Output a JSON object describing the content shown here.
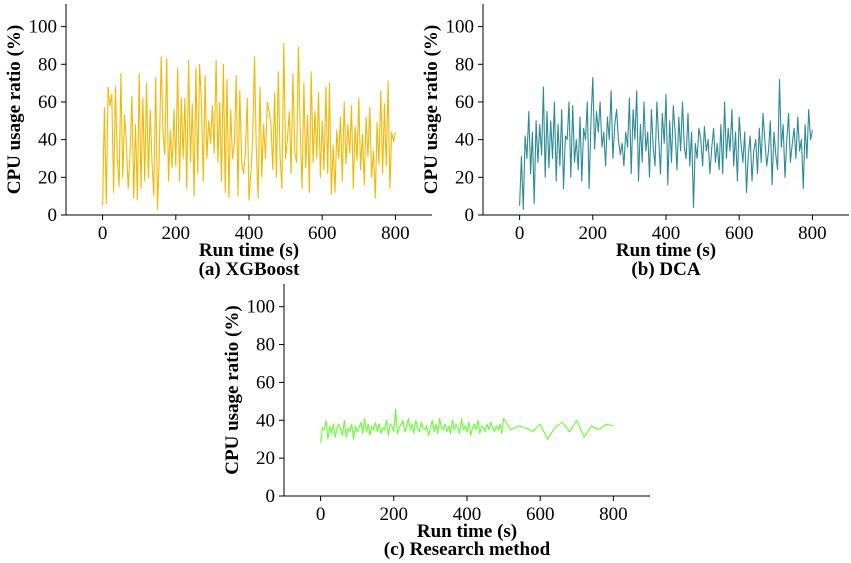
{
  "chart_data": [
    {
      "type": "line",
      "caption": "(a) XGBoost",
      "xlabel": "Run time (s)",
      "ylabel": "CPU usage ratio (%)",
      "xlim": [
        -100,
        900
      ],
      "ylim": [
        0,
        112
      ],
      "xticks": [
        0,
        200,
        400,
        600,
        800
      ],
      "yticks": [
        0,
        20,
        40,
        60,
        80,
        100
      ],
      "color": "#f5b800",
      "series": [
        {
          "x": [
            0,
            5,
            10,
            15,
            20,
            25,
            30,
            35,
            40,
            45,
            50,
            55,
            60,
            65,
            70,
            75,
            80,
            85,
            90,
            95,
            100,
            105,
            110,
            115,
            120,
            125,
            130,
            135,
            140,
            145,
            150,
            155,
            160,
            165,
            170,
            175,
            180,
            185,
            190,
            195,
            200,
            205,
            210,
            215,
            220,
            225,
            230,
            235,
            240,
            245,
            250,
            255,
            260,
            265,
            270,
            275,
            280,
            285,
            290,
            295,
            300,
            305,
            310,
            315,
            320,
            325,
            330,
            335,
            340,
            345,
            350,
            355,
            360,
            365,
            370,
            375,
            380,
            385,
            390,
            395,
            400,
            405,
            410,
            415,
            420,
            425,
            430,
            435,
            440,
            445,
            450,
            455,
            460,
            465,
            470,
            475,
            480,
            485,
            490,
            495,
            500,
            505,
            510,
            515,
            520,
            525,
            530,
            535,
            540,
            545,
            550,
            555,
            560,
            565,
            570,
            575,
            580,
            585,
            590,
            595,
            600,
            605,
            610,
            615,
            620,
            625,
            630,
            635,
            640,
            645,
            650,
            655,
            660,
            665,
            670,
            675,
            680,
            685,
            690,
            695,
            700,
            705,
            710,
            715,
            720,
            725,
            730,
            735,
            740,
            745,
            750,
            755,
            760,
            765,
            770,
            775,
            780,
            785,
            790,
            795,
            800
          ],
          "y": [
            5,
            57,
            6,
            68,
            58,
            64,
            12,
            68,
            32,
            15,
            75,
            20,
            53,
            38,
            14,
            33,
            63,
            9,
            48,
            8,
            75,
            14,
            62,
            18,
            70,
            20,
            56,
            28,
            10,
            73,
            3,
            33,
            84,
            44,
            32,
            83,
            18,
            45,
            25,
            56,
            26,
            78,
            18,
            62,
            30,
            62,
            14,
            82,
            28,
            59,
            10,
            78,
            22,
            80,
            60,
            18,
            74,
            30,
            50,
            38,
            58,
            33,
            82,
            28,
            60,
            18,
            80,
            12,
            72,
            9,
            56,
            30,
            38,
            74,
            10,
            66,
            28,
            22,
            32,
            62,
            8,
            22,
            40,
            84,
            35,
            9,
            68,
            20,
            48,
            30,
            60,
            55,
            48,
            24,
            65,
            20,
            76,
            31,
            14,
            91,
            30,
            40,
            55,
            22,
            75,
            33,
            28,
            89,
            45,
            14,
            70,
            25,
            53,
            12,
            76,
            28,
            55,
            30,
            65,
            20,
            50,
            24,
            68,
            22,
            70,
            11,
            37,
            12,
            45,
            30,
            52,
            18,
            60,
            27,
            48,
            33,
            58,
            14,
            47,
            29,
            62,
            24,
            43,
            16,
            52,
            31,
            57,
            20,
            34,
            9,
            49,
            27,
            66,
            22,
            59,
            26,
            71,
            14,
            44,
            39,
            44
          ]
        }
      ]
    },
    {
      "type": "line",
      "caption": "(b) DCA",
      "xlabel": "Run time (s)",
      "ylabel": "CPU usage ratio (%)",
      "xlim": [
        -100,
        900
      ],
      "ylim": [
        0,
        112
      ],
      "xticks": [
        0,
        200,
        400,
        600,
        800
      ],
      "yticks": [
        0,
        20,
        40,
        60,
        80,
        100
      ],
      "color": "#2e8b95",
      "series": [
        {
          "x": [
            0,
            5,
            10,
            15,
            20,
            25,
            30,
            35,
            40,
            45,
            50,
            55,
            60,
            65,
            70,
            75,
            80,
            85,
            90,
            95,
            100,
            105,
            110,
            115,
            120,
            125,
            130,
            135,
            140,
            145,
            150,
            155,
            160,
            165,
            170,
            175,
            180,
            185,
            190,
            195,
            200,
            205,
            210,
            215,
            220,
            225,
            230,
            235,
            240,
            245,
            250,
            255,
            260,
            265,
            270,
            275,
            280,
            285,
            290,
            295,
            300,
            305,
            310,
            315,
            320,
            325,
            330,
            335,
            340,
            345,
            350,
            355,
            360,
            365,
            370,
            375,
            380,
            385,
            390,
            395,
            400,
            405,
            410,
            415,
            420,
            425,
            430,
            435,
            440,
            445,
            450,
            455,
            460,
            465,
            470,
            475,
            480,
            485,
            490,
            495,
            500,
            505,
            510,
            515,
            520,
            525,
            530,
            535,
            540,
            545,
            550,
            555,
            560,
            565,
            570,
            575,
            580,
            585,
            590,
            595,
            600,
            605,
            610,
            615,
            620,
            625,
            630,
            635,
            640,
            645,
            650,
            655,
            660,
            665,
            670,
            675,
            680,
            685,
            690,
            695,
            700,
            705,
            710,
            715,
            720,
            725,
            730,
            735,
            740,
            745,
            750,
            755,
            760,
            765,
            770,
            775,
            780,
            785,
            790,
            795,
            800
          ],
          "y": [
            5,
            31,
            3,
            42,
            30,
            55,
            22,
            44,
            6,
            50,
            28,
            48,
            32,
            68,
            20,
            55,
            25,
            50,
            30,
            60,
            18,
            48,
            26,
            56,
            14,
            42,
            40,
            60,
            20,
            58,
            28,
            40,
            24,
            52,
            18,
            46,
            40,
            60,
            14,
            50,
            73,
            35,
            55,
            44,
            60,
            36,
            44,
            26,
            52,
            40,
            66,
            30,
            48,
            56,
            40,
            32,
            38,
            26,
            44,
            36,
            62,
            22,
            56,
            40,
            66,
            18,
            48,
            28,
            60,
            34,
            44,
            20,
            56,
            36,
            26,
            60,
            40,
            22,
            54,
            38,
            64,
            16,
            50,
            28,
            58,
            44,
            24,
            52,
            34,
            60,
            36,
            30,
            54,
            26,
            44,
            4,
            38,
            30,
            46,
            40,
            26,
            47,
            34,
            40,
            22,
            36,
            46,
            28,
            38,
            24,
            48,
            22,
            60,
            30,
            46,
            34,
            56,
            26,
            44,
            18,
            52,
            38,
            28,
            44,
            12,
            32,
            42,
            18,
            34,
            40,
            22,
            46,
            28,
            54,
            40,
            26,
            34,
            50,
            16,
            44,
            32,
            24,
            72,
            36,
            48,
            20,
            40,
            54,
            28,
            38,
            46,
            30,
            52,
            34,
            40,
            14,
            48,
            30,
            56,
            40,
            45
          ]
        }
      ]
    },
    {
      "type": "line",
      "caption": "(c) Research method",
      "xlabel": "Run time (s)",
      "ylabel": "CPU usage ratio (%)",
      "xlim": [
        -100,
        900
      ],
      "ylim": [
        0,
        112
      ],
      "xticks": [
        0,
        200,
        400,
        600,
        800
      ],
      "yticks": [
        0,
        20,
        40,
        60,
        80,
        100
      ],
      "color": "#66ff33",
      "series": [
        {
          "x": [
            0,
            5,
            10,
            15,
            20,
            25,
            30,
            35,
            40,
            45,
            50,
            55,
            60,
            65,
            70,
            75,
            80,
            85,
            90,
            95,
            100,
            105,
            110,
            115,
            120,
            125,
            130,
            135,
            140,
            145,
            150,
            155,
            160,
            165,
            170,
            175,
            180,
            185,
            190,
            195,
            200,
            205,
            210,
            215,
            220,
            225,
            230,
            235,
            240,
            245,
            250,
            255,
            260,
            265,
            270,
            275,
            280,
            285,
            290,
            295,
            300,
            305,
            310,
            315,
            320,
            325,
            330,
            335,
            340,
            345,
            350,
            355,
            360,
            365,
            370,
            375,
            380,
            385,
            390,
            395,
            400,
            405,
            410,
            415,
            420,
            425,
            430,
            435,
            440,
            445,
            450,
            455,
            460,
            465,
            470,
            475,
            480,
            485,
            490,
            495,
            500,
            520,
            540,
            560,
            580,
            600,
            620,
            640,
            660,
            680,
            700,
            720,
            740,
            760,
            780,
            800
          ],
          "y": [
            28,
            36,
            35,
            40,
            30,
            37,
            33,
            38,
            31,
            36,
            38,
            35,
            32,
            40,
            31,
            36,
            34,
            38,
            30,
            37,
            34,
            36,
            39,
            33,
            41,
            34,
            38,
            32,
            37,
            35,
            39,
            34,
            38,
            33,
            36,
            35,
            40,
            32,
            38,
            37,
            34,
            46,
            33,
            36,
            38,
            40,
            34,
            37,
            41,
            35,
            38,
            33,
            40,
            36,
            34,
            39,
            36,
            35,
            37,
            32,
            36,
            40,
            34,
            38,
            33,
            41,
            36,
            35,
            38,
            34,
            37,
            33,
            40,
            35,
            38,
            36,
            33,
            41,
            35,
            37,
            34,
            39,
            32,
            36,
            38,
            35,
            40,
            33,
            37,
            36,
            34,
            38,
            35,
            39,
            36,
            34,
            37,
            35,
            38,
            33,
            41,
            35,
            37,
            36,
            34,
            38,
            30,
            36,
            39,
            34,
            40,
            31,
            37,
            35,
            38,
            37
          ]
        }
      ]
    }
  ]
}
